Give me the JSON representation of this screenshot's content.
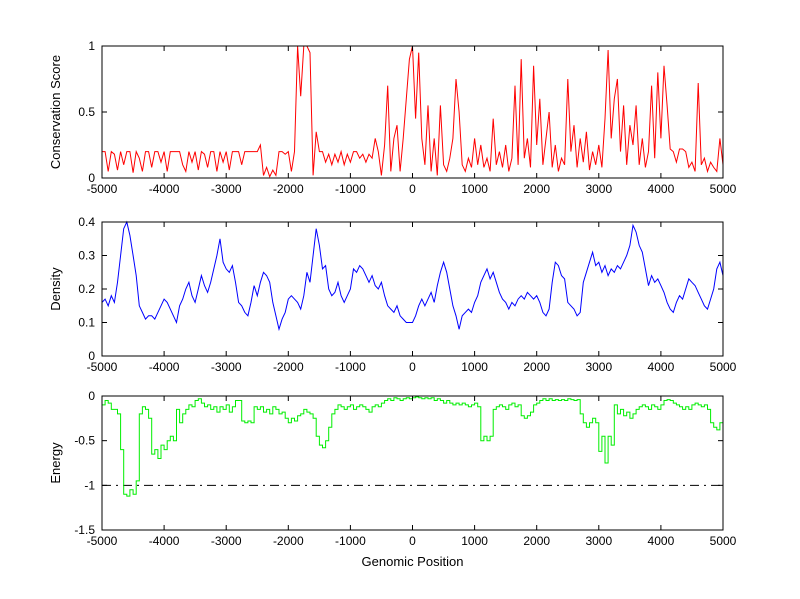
{
  "figure": {
    "background": "#FFFFFF",
    "x_axis": {
      "label": "Genomic Position",
      "lim": [
        -5000,
        5000
      ],
      "ticks": [
        -5000,
        -4000,
        -3000,
        -2000,
        -1000,
        0,
        1000,
        2000,
        3000,
        4000,
        5000
      ],
      "tick_labels": [
        "-5000",
        "-4000",
        "-3000",
        "-2000",
        "-1000",
        "0",
        "1000",
        "2000",
        "3000",
        "4000",
        "5000"
      ]
    }
  },
  "chart_data": [
    {
      "type": "line",
      "name": "conservation-score",
      "ylabel": "Conservation Score",
      "color": "#FF0000",
      "line_style": "solid",
      "draw": "line",
      "xlim": [
        -5000,
        5000
      ],
      "ylim": [
        0,
        1
      ],
      "yticks": [
        0,
        0.5,
        1
      ],
      "ytick_labels": [
        "0",
        "0.5",
        "1"
      ],
      "grid": false,
      "x0": -5000,
      "dx": 50,
      "values": [
        0.2,
        0.2,
        0.05,
        0.2,
        0.18,
        0.06,
        0.2,
        0.1,
        0.2,
        0.2,
        0.04,
        0.2,
        0.15,
        0.05,
        0.2,
        0.2,
        0.08,
        0.2,
        0.2,
        0.12,
        0.2,
        0.05,
        0.2,
        0.2,
        0.2,
        0.2,
        0.1,
        0.05,
        0.2,
        0.12,
        0.2,
        0.06,
        0.2,
        0.18,
        0.08,
        0.2,
        0.2,
        0.05,
        0.2,
        0.12,
        0.2,
        0.06,
        0.2,
        0.2,
        0.2,
        0.1,
        0.2,
        0.2,
        0.2,
        0.2,
        0.2,
        0.25,
        0.02,
        0.08,
        0.01,
        0.06,
        0.02,
        0.2,
        0.2,
        0.18,
        0.2,
        0.05,
        0.2,
        1.0,
        0.62,
        1.0,
        1.0,
        0.95,
        0.02,
        0.35,
        0.2,
        0.2,
        0.12,
        0.18,
        0.1,
        0.18,
        0.12,
        0.2,
        0.1,
        0.18,
        0.12,
        0.2,
        0.2,
        0.15,
        0.18,
        0.12,
        0.18,
        0.15,
        0.3,
        0.2,
        0.02,
        0.25,
        0.7,
        0.05,
        0.3,
        0.4,
        0.05,
        0.3,
        0.6,
        0.9,
        1.0,
        0.45,
        0.95,
        0.3,
        0.1,
        0.55,
        0.05,
        0.3,
        0.02,
        0.55,
        0.1,
        0.05,
        0.15,
        0.3,
        0.75,
        0.5,
        0.1,
        0.05,
        0.15,
        0.08,
        0.3,
        0.1,
        0.25,
        0.08,
        0.15,
        0.05,
        0.45,
        0.1,
        0.2,
        0.08,
        0.25,
        0.05,
        0.15,
        0.7,
        0.1,
        0.9,
        0.15,
        0.3,
        0.08,
        0.85,
        0.25,
        0.6,
        0.1,
        0.3,
        0.5,
        0.08,
        0.25,
        0.05,
        0.15,
        0.1,
        0.75,
        0.2,
        0.4,
        0.08,
        0.3,
        0.12,
        0.35,
        0.06,
        0.2,
        0.1,
        0.25,
        0.08,
        0.45,
        0.97,
        0.3,
        0.6,
        0.75,
        0.2,
        0.55,
        0.1,
        0.4,
        0.25,
        0.55,
        0.1,
        0.3,
        0.08,
        0.2,
        0.7,
        0.15,
        0.8,
        0.3,
        0.85,
        0.55,
        0.22,
        0.2,
        0.12,
        0.22,
        0.22,
        0.2,
        0.08,
        0.12,
        0.05,
        0.72,
        0.1,
        0.15,
        0.05,
        0.12,
        0.08,
        0.05,
        0.3,
        0.1
      ]
    },
    {
      "type": "line",
      "name": "density",
      "ylabel": "Density",
      "color": "#0000FF",
      "line_style": "solid",
      "draw": "line",
      "xlim": [
        -5000,
        5000
      ],
      "ylim": [
        0,
        0.4
      ],
      "yticks": [
        0,
        0.1,
        0.2,
        0.3,
        0.4
      ],
      "ytick_labels": [
        "0",
        "0.1",
        "0.2",
        "0.3",
        "0.4"
      ],
      "grid": false,
      "x0": -5000,
      "dx": 50,
      "values": [
        0.16,
        0.17,
        0.15,
        0.18,
        0.16,
        0.22,
        0.3,
        0.38,
        0.4,
        0.36,
        0.3,
        0.24,
        0.15,
        0.13,
        0.11,
        0.12,
        0.12,
        0.11,
        0.13,
        0.15,
        0.17,
        0.16,
        0.14,
        0.12,
        0.1,
        0.15,
        0.17,
        0.2,
        0.22,
        0.18,
        0.16,
        0.2,
        0.24,
        0.21,
        0.19,
        0.22,
        0.26,
        0.3,
        0.35,
        0.28,
        0.26,
        0.25,
        0.27,
        0.22,
        0.16,
        0.15,
        0.13,
        0.12,
        0.16,
        0.21,
        0.18,
        0.22,
        0.25,
        0.24,
        0.22,
        0.16,
        0.12,
        0.08,
        0.11,
        0.13,
        0.17,
        0.18,
        0.17,
        0.16,
        0.14,
        0.18,
        0.25,
        0.22,
        0.3,
        0.38,
        0.33,
        0.26,
        0.27,
        0.2,
        0.18,
        0.19,
        0.22,
        0.18,
        0.16,
        0.18,
        0.2,
        0.26,
        0.25,
        0.27,
        0.26,
        0.24,
        0.22,
        0.24,
        0.21,
        0.2,
        0.22,
        0.18,
        0.15,
        0.14,
        0.13,
        0.15,
        0.12,
        0.11,
        0.1,
        0.1,
        0.1,
        0.12,
        0.15,
        0.17,
        0.15,
        0.17,
        0.19,
        0.16,
        0.21,
        0.25,
        0.28,
        0.25,
        0.2,
        0.15,
        0.12,
        0.08,
        0.12,
        0.13,
        0.14,
        0.13,
        0.16,
        0.18,
        0.22,
        0.24,
        0.26,
        0.23,
        0.25,
        0.22,
        0.19,
        0.17,
        0.16,
        0.14,
        0.16,
        0.15,
        0.17,
        0.18,
        0.17,
        0.19,
        0.18,
        0.17,
        0.18,
        0.16,
        0.13,
        0.12,
        0.14,
        0.22,
        0.28,
        0.27,
        0.24,
        0.23,
        0.16,
        0.15,
        0.14,
        0.12,
        0.13,
        0.22,
        0.25,
        0.28,
        0.31,
        0.27,
        0.28,
        0.25,
        0.27,
        0.24,
        0.26,
        0.25,
        0.27,
        0.26,
        0.28,
        0.3,
        0.33,
        0.39,
        0.37,
        0.33,
        0.31,
        0.26,
        0.21,
        0.24,
        0.22,
        0.23,
        0.21,
        0.19,
        0.16,
        0.14,
        0.13,
        0.16,
        0.18,
        0.17,
        0.2,
        0.23,
        0.22,
        0.21,
        0.19,
        0.17,
        0.15,
        0.14,
        0.17,
        0.2,
        0.26,
        0.28,
        0.24
      ]
    },
    {
      "type": "line",
      "name": "energy",
      "ylabel": "Energy",
      "color": "#00EE00",
      "line_style": "solid",
      "draw": "stairs",
      "xlim": [
        -5000,
        5000
      ],
      "ylim": [
        -1.5,
        0
      ],
      "yticks": [
        -1.5,
        -1,
        -0.5,
        0
      ],
      "ytick_labels": [
        "-1.5",
        "-1",
        "-0.5",
        "0"
      ],
      "grid": false,
      "reference_line": {
        "y": -1,
        "style": "dash-dot",
        "color": "#000000"
      },
      "x0": -5000,
      "dx": 50,
      "values": [
        -0.1,
        -0.05,
        -0.08,
        -0.15,
        -0.15,
        -0.2,
        -0.6,
        -1.1,
        -1.12,
        -1.05,
        -1.1,
        -0.95,
        -0.2,
        -0.12,
        -0.15,
        -0.25,
        -0.65,
        -0.6,
        -0.7,
        -0.55,
        -0.6,
        -0.5,
        -0.45,
        -0.5,
        -0.15,
        -0.3,
        -0.2,
        -0.15,
        -0.1,
        -0.12,
        -0.05,
        -0.03,
        -0.08,
        -0.12,
        -0.1,
        -0.15,
        -0.12,
        -0.18,
        -0.12,
        -0.15,
        -0.1,
        -0.18,
        -0.12,
        -0.05,
        -0.05,
        -0.28,
        -0.3,
        -0.28,
        -0.3,
        -0.12,
        -0.15,
        -0.12,
        -0.18,
        -0.15,
        -0.2,
        -0.12,
        -0.15,
        -0.2,
        -0.18,
        -0.25,
        -0.3,
        -0.25,
        -0.28,
        -0.22,
        -0.2,
        -0.15,
        -0.18,
        -0.2,
        -0.25,
        -0.45,
        -0.55,
        -0.58,
        -0.5,
        -0.35,
        -0.2,
        -0.15,
        -0.1,
        -0.12,
        -0.15,
        -0.12,
        -0.1,
        -0.15,
        -0.12,
        -0.1,
        -0.12,
        -0.15,
        -0.18,
        -0.12,
        -0.1,
        -0.12,
        -0.08,
        -0.05,
        -0.03,
        -0.05,
        -0.02,
        -0.03,
        -0.05,
        -0.03,
        -0.02,
        -0.03,
        -0.02,
        -0.01,
        -0.02,
        -0.03,
        -0.02,
        -0.03,
        -0.02,
        -0.05,
        -0.03,
        -0.05,
        -0.08,
        -0.05,
        -0.08,
        -0.1,
        -0.08,
        -0.1,
        -0.08,
        -0.1,
        -0.12,
        -0.1,
        -0.08,
        -0.12,
        -0.5,
        -0.45,
        -0.5,
        -0.45,
        -0.15,
        -0.12,
        -0.1,
        -0.12,
        -0.15,
        -0.1,
        -0.08,
        -0.12,
        -0.1,
        -0.22,
        -0.25,
        -0.22,
        -0.18,
        -0.1,
        -0.08,
        -0.05,
        -0.03,
        -0.05,
        -0.03,
        -0.05,
        -0.04,
        -0.05,
        -0.04,
        -0.05,
        -0.03,
        -0.04,
        -0.05,
        -0.04,
        -0.2,
        -0.3,
        -0.35,
        -0.3,
        -0.25,
        -0.3,
        -0.62,
        -0.45,
        -0.75,
        -0.45,
        -0.55,
        -0.1,
        -0.2,
        -0.15,
        -0.22,
        -0.18,
        -0.25,
        -0.2,
        -0.15,
        -0.12,
        -0.1,
        -0.12,
        -0.15,
        -0.1,
        -0.12,
        -0.15,
        -0.1,
        -0.05,
        -0.04,
        -0.05,
        -0.08,
        -0.1,
        -0.12,
        -0.15,
        -0.12,
        -0.15,
        -0.1,
        -0.08,
        -0.1,
        -0.12,
        -0.1,
        -0.15,
        -0.3,
        -0.35,
        -0.38,
        -0.3,
        -0.3
      ]
    }
  ]
}
